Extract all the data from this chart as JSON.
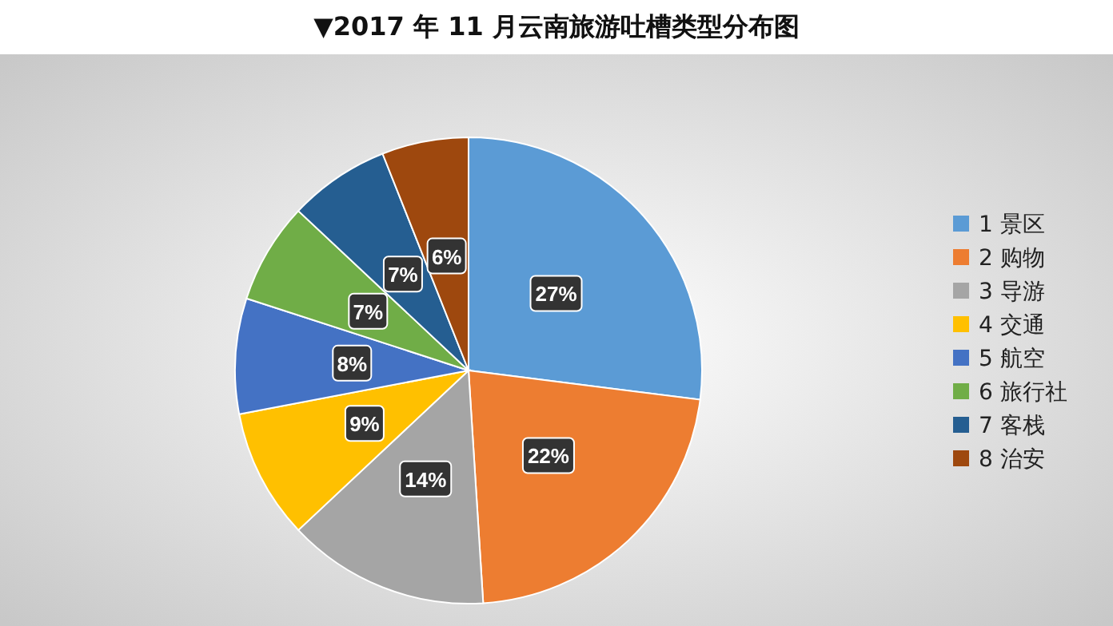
{
  "chart_data": {
    "type": "pie",
    "title": "▼2017 年 11 月云南旅游吐槽类型分布图",
    "categories": [
      "1 景区",
      "2 购物",
      "3 导游",
      "4 交通",
      "5 航空",
      "6 旅行社",
      "7 客栈",
      "8 治安"
    ],
    "values": [
      27,
      22,
      14,
      9,
      8,
      7,
      7,
      6
    ],
    "value_labels": [
      "27%",
      "22%",
      "14%",
      "9%",
      "8%",
      "7%",
      "7%",
      "6%"
    ],
    "colors": [
      "#5b9bd5",
      "#ed7d31",
      "#a5a5a5",
      "#ffc000",
      "#4472c4",
      "#70ad47",
      "#255e91",
      "#9e480e"
    ],
    "legend": "right"
  }
}
